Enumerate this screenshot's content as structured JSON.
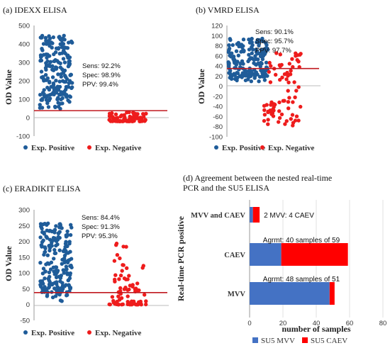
{
  "colors": {
    "positive": "#1f5c99",
    "negative": "#ee1c1c",
    "cutoff": "#c0181f",
    "su5_mvv": "#4472c4",
    "su5_caev": "#ff0000"
  },
  "chart_data": [
    {
      "id": "a",
      "type": "scatter",
      "title": "(a) IDEXX ELISA",
      "ylabel": "OD Value",
      "ylim": [
        -100,
        500
      ],
      "yticks": [
        "500",
        "400",
        "300",
        "200",
        "100",
        "0",
        "-100"
      ],
      "ytick_values": [
        500,
        400,
        300,
        200,
        100,
        0,
        -100
      ],
      "cutoff": 38,
      "stats": [
        "Sens: 92.2%",
        "Spec: 98.9%",
        "PPV:  99.4%"
      ],
      "legend": [
        "Exp. Positive",
        "Exp. Negative"
      ],
      "positive_range": [
        30,
        455
      ],
      "negative_range": [
        -20,
        30
      ],
      "n_positive": 200,
      "n_negative": 80
    },
    {
      "id": "b",
      "type": "scatter",
      "title": "(b) VMRD ELISA",
      "ylabel": "OD Value",
      "ylim": [
        -100,
        120
      ],
      "yticks": [
        "120",
        "100",
        "80",
        "60",
        "40",
        "20",
        "0",
        "-20",
        "-40",
        "-60",
        "-80",
        "-100"
      ],
      "ytick_values": [
        120,
        100,
        80,
        60,
        40,
        20,
        0,
        -20,
        -40,
        -60,
        -80,
        -100
      ],
      "cutoff": 35,
      "stats": [
        "Sens: 90.1%",
        "Spec: 95.7%",
        "PPV:  97.7%"
      ],
      "legend": [
        "Exp. Positive",
        "Exp. Negative"
      ],
      "positive_range": [
        5,
        95
      ],
      "negative_range": [
        -80,
        68
      ],
      "n_positive": 200,
      "n_negative": 80
    },
    {
      "id": "c",
      "type": "scatter",
      "title": "(c) ERADIKIT ELISA",
      "ylabel": "OD Value",
      "ylim": [
        -50,
        300
      ],
      "yticks": [
        "300",
        "250",
        "200",
        "150",
        "100",
        "50",
        "0",
        "-50"
      ],
      "ytick_values": [
        300,
        250,
        200,
        150,
        100,
        50,
        0,
        -50
      ],
      "cutoff": 38,
      "stats": [
        "Sens: 84.4%",
        "Spec: 91.3%",
        "PPV:  95.3%"
      ],
      "legend": [
        "Exp. Positive",
        "Exp. Negative"
      ],
      "positive_range": [
        0,
        258
      ],
      "negative_range": [
        0,
        195
      ],
      "n_positive": 200,
      "n_negative": 80
    },
    {
      "id": "d",
      "type": "bar",
      "orientation": "horizontal",
      "stacked": true,
      "title_lines": [
        "(d) Agreement between the nested real-time",
        "PCR and the SU5 ELISA"
      ],
      "ylabel": "Real-time PCR positive",
      "xlabel": "number of samples",
      "xlim": [
        0,
        80
      ],
      "xticks": [
        "0",
        "20",
        "40",
        "60",
        "80"
      ],
      "xtick_values": [
        0,
        20,
        40,
        60,
        80
      ],
      "categories": [
        "MVV and CAEV",
        "CAEV",
        "MVV"
      ],
      "series": [
        {
          "name": "SU5 MVV",
          "values": [
            2,
            19,
            48
          ]
        },
        {
          "name": "SU5 CAEV",
          "values": [
            4,
            40,
            3
          ]
        }
      ],
      "bar_labels": [
        "2 MVV: 4 CAEV",
        "Agrmt: 40 samples of 59",
        "Agrmt: 48 samples of 51"
      ]
    }
  ]
}
